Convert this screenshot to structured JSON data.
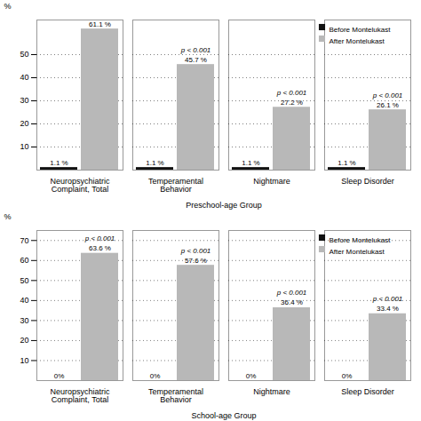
{
  "chart_data": [
    {
      "type": "bar",
      "categories": [
        "Neuropsychiatric\nComplaint, Total",
        "Temperamental\nBehavior",
        "Nightmare",
        "Sleep Disorder"
      ],
      "series": [
        {
          "name": "Before Montelukast",
          "color": "#111111",
          "values": [
            1.1,
            1.1,
            1.1,
            1.1
          ],
          "value_labels": [
            "1.1 %",
            "1.1 %",
            "1.1 %",
            "1.1 %"
          ]
        },
        {
          "name": "After Montelukast",
          "color": "#b8b8b8",
          "values": [
            61.1,
            45.7,
            27.2,
            26.1
          ],
          "value_labels": [
            "61.1 %",
            "45.7 %",
            "27.2 %",
            "26.1 %"
          ]
        }
      ],
      "xlabel": "Preschool-age Group",
      "ylabel": "%",
      "ylim": [
        0,
        65
      ],
      "yticks": [
        10,
        20,
        30,
        40,
        50
      ],
      "grid": true,
      "legend": "upper right",
      "data_labels": true,
      "annotations": [
        {
          "category": "Temperamental\nBehavior",
          "text": "p < 0.001"
        },
        {
          "category": "Nightmare",
          "text": "p < 0.001"
        },
        {
          "category": "Sleep Disorder",
          "text": "p < 0.001"
        }
      ]
    },
    {
      "type": "bar",
      "categories": [
        "Neuropsychiatric\nComplaint, Total",
        "Temperamental\nBehavior",
        "Nightmare",
        "Sleep Disorder"
      ],
      "series": [
        {
          "name": "Before Montelukast",
          "color": "#111111",
          "values": [
            0,
            0,
            0,
            0
          ],
          "value_labels": [
            "0%",
            "0%",
            "0%",
            "0%"
          ]
        },
        {
          "name": "After Montelukast",
          "color": "#b8b8b8",
          "values": [
            63.6,
            57.6,
            36.4,
            33.4
          ],
          "value_labels": [
            "63.6 %",
            "57.6 %",
            "36.4 %",
            "33.4 %"
          ]
        }
      ],
      "xlabel": "School-age Group",
      "ylabel": "%",
      "ylim": [
        0,
        75
      ],
      "yticks": [
        10,
        20,
        30,
        40,
        50,
        60,
        70
      ],
      "grid": true,
      "legend": "upper right",
      "data_labels": true,
      "annotations": [
        {
          "category": "Neuropsychiatric\nComplaint, Total",
          "text": "p < 0.001"
        },
        {
          "category": "Temperamental\nBehavior",
          "text": "p < 0.001"
        },
        {
          "category": "Nightmare",
          "text": "p < 0.001"
        },
        {
          "category": "Sleep Disorder",
          "text": "p < 0.001"
        }
      ]
    }
  ]
}
